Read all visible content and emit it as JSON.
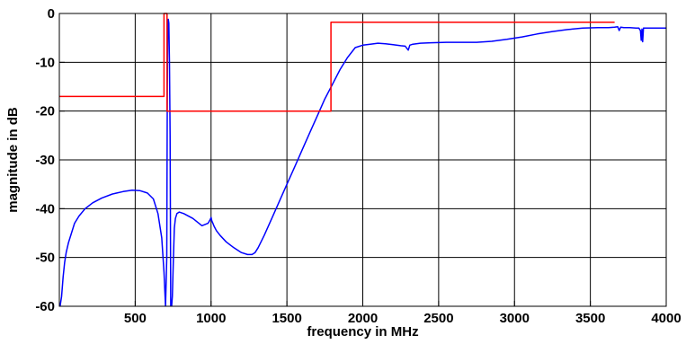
{
  "chart_data": {
    "type": "line",
    "title": "",
    "xlabel": "frequency in MHz",
    "ylabel": "magnitude in dB",
    "xlim": [
      0,
      4000
    ],
    "ylim": [
      -60,
      0
    ],
    "x_ticks": [
      500,
      1000,
      1500,
      2000,
      2500,
      3000,
      3500,
      4000
    ],
    "x_tick_labels": [
      "500",
      "1000",
      "1500",
      "2000",
      "2500",
      "3000",
      "3500",
      "4000"
    ],
    "y_ticks": [
      0,
      -10,
      -20,
      -30,
      -40,
      -50,
      -60
    ],
    "y_tick_labels": [
      "0",
      "-10",
      "-20",
      "-30",
      "-40",
      "-50",
      "-60"
    ],
    "grid": true,
    "series": [
      {
        "color": "#0000ff",
        "x": [
          5,
          15,
          25,
          35,
          45,
          60,
          80,
          100,
          130,
          170,
          220,
          280,
          350,
          420,
          480,
          530,
          580,
          620,
          650,
          675,
          690,
          700,
          708,
          712,
          715,
          718,
          722,
          726,
          730,
          734,
          740,
          745,
          752,
          758,
          765,
          775,
          790,
          820,
          880,
          940,
          980,
          995,
          1000,
          1005,
          1012,
          1020,
          1035,
          1060,
          1100,
          1150,
          1200,
          1240,
          1270,
          1290,
          1310,
          1350,
          1400,
          1450,
          1500,
          1550,
          1600,
          1650,
          1700,
          1750,
          1800,
          1850,
          1900,
          1950,
          2000,
          2050,
          2100,
          2150,
          2200,
          2250,
          2280,
          2300,
          2310,
          2330,
          2380,
          2450,
          2550,
          2650,
          2750,
          2850,
          2950,
          3050,
          3150,
          3250,
          3350,
          3450,
          3550,
          3620,
          3660,
          3680,
          3690,
          3700,
          3720,
          3760,
          3800,
          3820,
          3830,
          3835,
          3840,
          3845,
          3850,
          3860,
          3880,
          3920,
          3960,
          4000
        ],
        "y": [
          -60,
          -58,
          -54,
          -51,
          -49,
          -47,
          -45,
          -43,
          -41.5,
          -40,
          -38.8,
          -37.8,
          -37,
          -36.5,
          -36.2,
          -36.3,
          -36.8,
          -38,
          -41,
          -46,
          -53,
          -60,
          -50,
          -15,
          -2,
          -1.2,
          -2,
          -10,
          -25,
          -60,
          -60,
          -58,
          -50,
          -44,
          -42,
          -41,
          -40.7,
          -41,
          -42,
          -43.5,
          -43,
          -42.2,
          -41.8,
          -42.5,
          -43,
          -43.6,
          -44.5,
          -45.5,
          -46.8,
          -48,
          -49,
          -49.4,
          -49.4,
          -49,
          -48,
          -45.5,
          -42,
          -38.5,
          -35,
          -31.5,
          -28,
          -24.5,
          -21,
          -17.5,
          -14.5,
          -11.5,
          -9,
          -7,
          -6.5,
          -6.3,
          -6.1,
          -6.2,
          -6.4,
          -6.6,
          -6.7,
          -7.5,
          -6.5,
          -6.3,
          -6.1,
          -6,
          -5.9,
          -5.9,
          -5.9,
          -5.7,
          -5.3,
          -4.8,
          -4.2,
          -3.7,
          -3.3,
          -3,
          -2.9,
          -2.9,
          -2.8,
          -2.7,
          -3.5,
          -2.8,
          -2.9,
          -2.9,
          -3,
          -3,
          -3.5,
          -5.5,
          -3.2,
          -5.8,
          -3,
          -3,
          -3,
          -3,
          -3,
          -3
        ]
      },
      {
        "color": "#ff0000",
        "x": [
          0,
          690,
          690,
          710,
          710,
          740,
          740,
          1790,
          1790,
          3660
        ],
        "y": [
          -17,
          -17,
          0,
          0,
          -20,
          -20,
          -20,
          -20,
          -1.8,
          -1.8
        ]
      }
    ]
  }
}
